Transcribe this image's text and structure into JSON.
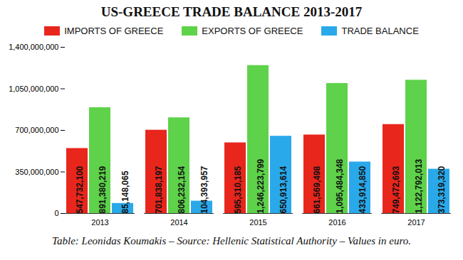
{
  "chart_data": {
    "type": "bar",
    "title": "US-GREECE TRADE BALANCE 2013-2017",
    "caption": "Table: Leonidas Koumakis – Source: Hellenic Statistical Authority – Values in euro.",
    "categories": [
      "2013",
      "2014",
      "2015",
      "2016",
      "2017"
    ],
    "series": [
      {
        "name": "IMPORTS OF GREECE",
        "color": "#e8261c",
        "values": [
          547732100,
          701838197,
          595310185,
          661569498,
          749472693
        ],
        "value_labels": [
          "547,732,100",
          "701,838,197",
          "595,310,185",
          "661,569,498",
          "749,472,693"
        ]
      },
      {
        "name": "EXPORTS OF GREECE",
        "color": "#5ed24a",
        "values": [
          891380219,
          806232154,
          1246223799,
          1095484348,
          1122792013
        ],
        "value_labels": [
          "891,380,219",
          "806,232,154",
          "1,246,223,799",
          "1,095,484,348",
          "1,122,792,013"
        ]
      },
      {
        "name": "TRADE BALANCE",
        "color": "#2aa9ea",
        "values": [
          85148065,
          104393957,
          650913614,
          433914850,
          373319320
        ],
        "value_labels": [
          "85,148,065",
          "104,393,957",
          "650,913,614",
          "433,914,850",
          "373,319,320"
        ]
      }
    ],
    "ylim": [
      0,
      1400000000
    ],
    "yticks": [
      0,
      {
        "value": 350000000,
        "label": "350,000,000"
      },
      {
        "value": 700000000,
        "label": "700,000,000"
      },
      {
        "value": 1050000000,
        "label": "1,050,000,000"
      },
      {
        "value": 1400000000,
        "label": "1,400,000,000"
      }
    ],
    "grid": false,
    "legend": "top",
    "data_labels": true
  }
}
